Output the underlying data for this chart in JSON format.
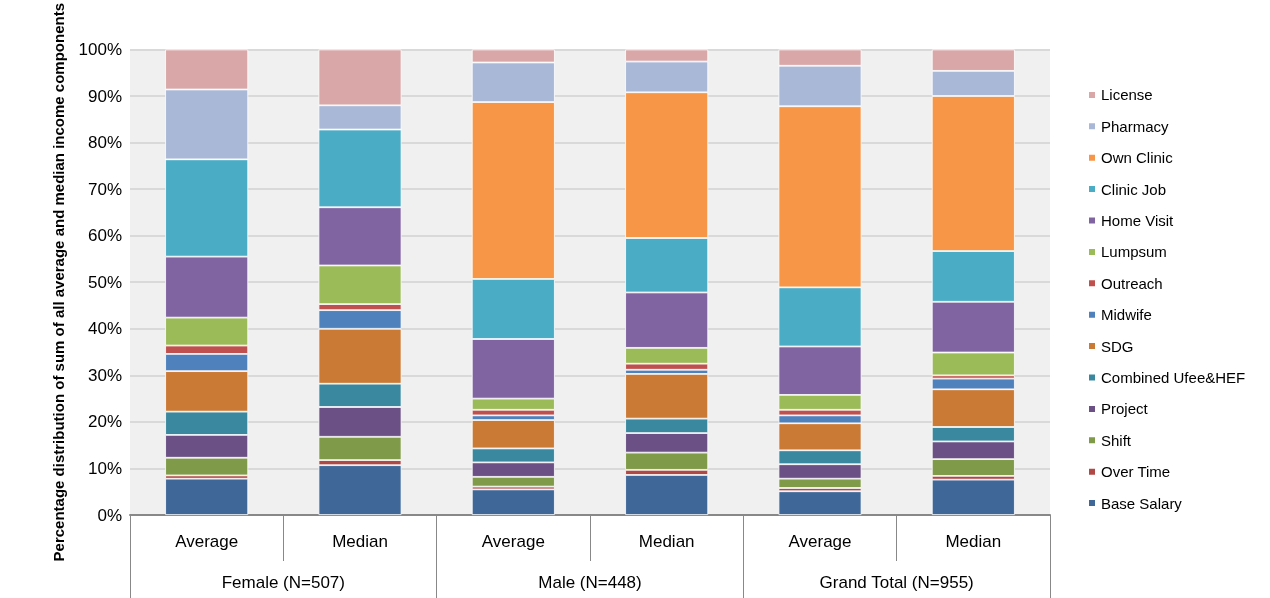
{
  "chart_data": {
    "type": "bar",
    "stacked": true,
    "ylabel": "Percentage distribution of sum of all average and median income components",
    "categories": [
      "Average",
      "Median",
      "Average",
      "Median",
      "Average",
      "Median"
    ],
    "annotations": [
      "Female (N=507)",
      "Male (N=448)",
      "Grand Total (N=955)"
    ],
    "series": [
      {
        "name": "Base Salary",
        "color": "#3f6899",
        "values": [
          7.8,
          10.7,
          5.5,
          8.6,
          5.1,
          7.6
        ]
      },
      {
        "name": "Over Time",
        "color": "#b04846",
        "values": [
          0.7,
          1.1,
          0.6,
          1.1,
          0.7,
          0.8
        ]
      },
      {
        "name": "Shift",
        "color": "#7f9a48",
        "values": [
          3.8,
          5.0,
          2.1,
          3.7,
          2.0,
          3.6
        ]
      },
      {
        "name": "Project",
        "color": "#6a5084",
        "values": [
          4.9,
          6.4,
          3.1,
          4.2,
          3.1,
          3.8
        ]
      },
      {
        "name": "Combined Ufee&HEF",
        "color": "#3a889f",
        "values": [
          5.0,
          5.0,
          3.0,
          3.1,
          3.0,
          3.1
        ]
      },
      {
        "name": "SDG",
        "color": "#cb7a36",
        "values": [
          8.7,
          11.8,
          6.1,
          9.6,
          5.8,
          8.1
        ]
      },
      {
        "name": "Midwife",
        "color": "#4f81bd",
        "values": [
          3.7,
          4.0,
          1.0,
          0.9,
          1.7,
          2.3
        ]
      },
      {
        "name": "Outreach",
        "color": "#c0504d",
        "values": [
          1.8,
          1.3,
          1.2,
          1.3,
          1.2,
          0.7
        ]
      },
      {
        "name": "Lumpsum",
        "color": "#9bbb59",
        "values": [
          6.0,
          8.3,
          2.4,
          3.4,
          3.2,
          4.9
        ]
      },
      {
        "name": "Home Visit",
        "color": "#8064a2",
        "values": [
          13.1,
          12.5,
          12.8,
          11.9,
          10.4,
          10.9
        ]
      },
      {
        "name": "Clinic Job",
        "color": "#4bacc6",
        "values": [
          20.9,
          16.7,
          12.9,
          11.7,
          12.7,
          10.9
        ]
      },
      {
        "name": "Own Clinic",
        "color": "#f79646",
        "values": [
          0,
          0,
          38.0,
          31.3,
          38.9,
          33.3
        ]
      },
      {
        "name": "Pharmacy",
        "color": "#a9b8d7",
        "values": [
          15.0,
          5.2,
          8.5,
          6.6,
          8.7,
          5.4
        ]
      },
      {
        "name": "License",
        "color": "#d9a7a7",
        "values": [
          8.6,
          12.0,
          2.8,
          2.6,
          3.5,
          4.6
        ]
      }
    ],
    "ylim": [
      0,
      100
    ],
    "yticks": [
      {
        "value": 0,
        "label": "0%"
      },
      {
        "value": 10,
        "label": "10%"
      },
      {
        "value": 20,
        "label": "20%"
      },
      {
        "value": 30,
        "label": "30%"
      },
      {
        "value": 40,
        "label": "40%"
      },
      {
        "value": 50,
        "label": "50%"
      },
      {
        "value": 60,
        "label": "60%"
      },
      {
        "value": 70,
        "label": "70%"
      },
      {
        "value": 80,
        "label": "80%"
      },
      {
        "value": 90,
        "label": "90%"
      },
      {
        "value": 100,
        "label": "100%"
      }
    ],
    "grid": "y",
    "legend": "right"
  }
}
